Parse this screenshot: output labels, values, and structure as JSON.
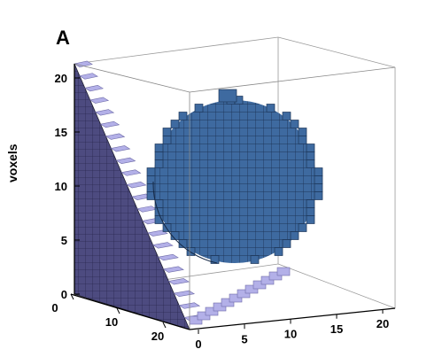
{
  "figure": {
    "panel_label": "A",
    "z_axis_label": "voxels",
    "z_ticks": [
      "0",
      "5",
      "10",
      "15",
      "20"
    ],
    "x_ticks": [
      "0",
      "10",
      "20"
    ],
    "y_ticks": [
      "0",
      "5",
      "10",
      "15",
      "20"
    ],
    "colors": {
      "wedge_front": "#4d4b80",
      "wedge_step": "#b3b0e8",
      "sphere": "#3e6aa0",
      "grid_line": "#222233",
      "box_line": "#888888"
    },
    "objects": [
      {
        "shape": "staircase-wedge",
        "color": "lavender"
      },
      {
        "shape": "voxelized-sphere",
        "color": "steel-blue"
      }
    ]
  }
}
